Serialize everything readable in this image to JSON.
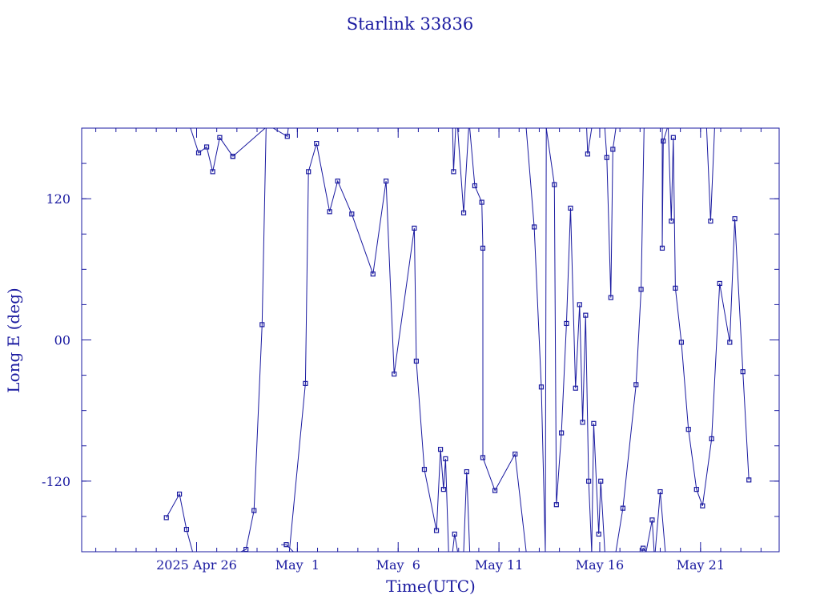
{
  "colors": {
    "ink": "#1a1aa0",
    "background": "#ffffff"
  },
  "chart_data": {
    "type": "line",
    "title": "Starlink 33836",
    "xlabel": "Time(UTC)",
    "ylabel": "Long E (deg)",
    "x_unit": "days",
    "xlim": [
      -3.2,
      31.4
    ],
    "ylim": [
      -180,
      180
    ],
    "grid": false,
    "markers": "square",
    "x_ticks": [
      {
        "value": 2.5,
        "label": "2025 Apr 26"
      },
      {
        "value": 7.5,
        "label": "May  1"
      },
      {
        "value": 12.5,
        "label": "May  6"
      },
      {
        "value": 17.5,
        "label": "May 11"
      },
      {
        "value": 22.5,
        "label": "May 16"
      },
      {
        "value": 27.5,
        "label": "May 21"
      }
    ],
    "y_ticks": [
      {
        "value": 120,
        "label": "120"
      },
      {
        "value": 0,
        "label": "00"
      },
      {
        "value": -120,
        "label": "-120"
      }
    ],
    "series": [
      {
        "x": [
          1.0,
          1.65,
          2.0,
          2.3
        ],
        "y": [
          -151,
          -131,
          -161,
          -180
        ],
        "pts": [
          1,
          1,
          1,
          0
        ]
      },
      {
        "x": [
          2.2,
          2.6,
          3.0,
          3.3,
          3.65,
          4.3
        ],
        "y": [
          180,
          159,
          164,
          143,
          172,
          156
        ],
        "pts": [
          0,
          1,
          1,
          1,
          1,
          1
        ]
      },
      {
        "x": [
          4.3,
          5.9,
          6.3
        ],
        "y": [
          156,
          180,
          180
        ],
        "pts": [
          1,
          0,
          0
        ]
      },
      {
        "x": [
          6.3,
          7.0,
          7.05
        ],
        "y": [
          180,
          173,
          180
        ],
        "pts": [
          0,
          1,
          0
        ]
      },
      {
        "x": [
          4.7,
          4.95,
          5.35,
          5.75,
          5.95
        ],
        "y": [
          -180,
          -178,
          -145,
          13,
          180
        ],
        "pts": [
          0,
          1,
          1,
          1,
          0
        ]
      },
      {
        "x": [
          6.7,
          6.95,
          7.3
        ],
        "y": [
          -174,
          -174,
          -180
        ],
        "pts": [
          0,
          1,
          0
        ]
      },
      {
        "x": [
          7.1,
          7.9,
          8.05,
          8.45,
          9.1,
          9.5,
          10.2,
          11.25,
          11.9,
          12.3,
          13.3,
          13.4,
          13.8,
          14.4,
          14.6,
          14.75,
          14.85,
          15.0,
          15.15
        ],
        "y": [
          -180,
          -37,
          143,
          167,
          109,
          135,
          107,
          56,
          135,
          -29,
          95,
          -18,
          -110,
          -162,
          -93,
          -127,
          -101,
          -180,
          -180
        ],
        "pts": [
          0,
          1,
          1,
          1,
          1,
          1,
          1,
          1,
          1,
          1,
          1,
          1,
          1,
          1,
          1,
          1,
          1,
          0,
          0
        ]
      },
      {
        "x": [
          15.2,
          15.3,
          15.45
        ],
        "y": [
          -180,
          -165,
          -180
        ],
        "pts": [
          0,
          1,
          0
        ]
      },
      {
        "x": [
          15.2,
          15.25,
          15.35
        ],
        "y": [
          180,
          143,
          180
        ],
        "pts": [
          0,
          1,
          0
        ]
      },
      {
        "x": [
          15.45,
          15.75,
          16.0
        ],
        "y": [
          180,
          108,
          180
        ],
        "pts": [
          0,
          1,
          0
        ]
      },
      {
        "x": [
          15.75,
          15.9,
          16.05
        ],
        "y": [
          -180,
          -112,
          -180
        ],
        "pts": [
          0,
          1,
          0
        ]
      },
      {
        "x": [
          16.05,
          16.3,
          16.65,
          16.7,
          16.7,
          17.3,
          18.3,
          18.85
        ],
        "y": [
          180,
          131,
          117,
          78,
          -100,
          -128,
          -97,
          -180
        ],
        "pts": [
          0,
          1,
          1,
          1,
          1,
          1,
          1,
          0
        ]
      },
      {
        "x": [
          18.85,
          19.25,
          19.6,
          19.8,
          19.85
        ],
        "y": [
          180,
          96,
          -40,
          -180,
          180
        ],
        "pts": [
          0,
          1,
          1,
          0,
          0
        ]
      },
      {
        "x": [
          19.85,
          20.25,
          20.35,
          20.6,
          20.85,
          21.05,
          21.3,
          21.5,
          21.65,
          21.8,
          21.95,
          22.1
        ],
        "y": [
          180,
          132,
          -140,
          -79,
          14,
          112,
          -41,
          30,
          -70,
          21,
          -120,
          -180
        ],
        "pts": [
          0,
          1,
          1,
          1,
          1,
          1,
          1,
          1,
          1,
          1,
          1,
          0
        ]
      },
      {
        "x": [
          21.85,
          21.9,
          22.1
        ],
        "y": [
          180,
          158,
          180
        ],
        "pts": [
          0,
          1,
          0
        ]
      },
      {
        "x": [
          22.1,
          22.2,
          22.45,
          22.55,
          22.75
        ],
        "y": [
          -180,
          -71,
          -165,
          -120,
          -180
        ],
        "pts": [
          0,
          1,
          1,
          1,
          0
        ]
      },
      {
        "x": [
          22.75,
          22.85,
          23.05,
          23.15,
          23.3,
          23.35
        ],
        "y": [
          180,
          155,
          36,
          162,
          180,
          180
        ],
        "pts": [
          0,
          1,
          1,
          1,
          0,
          0
        ]
      },
      {
        "x": [
          23.3,
          23.65,
          24.3,
          24.55,
          24.7
        ],
        "y": [
          -180,
          -143,
          -38,
          43,
          180
        ],
        "pts": [
          0,
          1,
          1,
          1,
          0
        ]
      },
      {
        "x": [
          24.6,
          24.65,
          24.8
        ],
        "y": [
          -180,
          -177,
          -180
        ],
        "pts": [
          0,
          1,
          0
        ]
      },
      {
        "x": [
          24.8,
          25.1,
          25.2
        ],
        "y": [
          -180,
          -153,
          -180
        ],
        "pts": [
          0,
          1,
          0
        ]
      },
      {
        "x": [
          25.25,
          25.5,
          25.75
        ],
        "y": [
          -180,
          -129,
          -180
        ],
        "pts": [
          0,
          1,
          0
        ]
      },
      {
        "x": [
          25.6,
          25.6,
          25.65,
          25.85,
          25.9
        ],
        "y": [
          180,
          78,
          169,
          180,
          180
        ],
        "pts": [
          0,
          1,
          1,
          0,
          0
        ]
      },
      {
        "x": [
          25.9,
          26.05,
          26.15,
          26.25,
          26.55,
          26.9,
          27.3,
          27.6,
          28.05,
          28.45,
          28.95,
          29.2,
          29.6,
          29.9
        ],
        "y": [
          180,
          101,
          172,
          44,
          -2,
          -76,
          -127,
          -141,
          -84,
          48,
          -2,
          103,
          -27,
          -119
        ],
        "pts": [
          0,
          1,
          1,
          1,
          1,
          1,
          1,
          1,
          1,
          1,
          1,
          1,
          1,
          1
        ]
      },
      {
        "x": [
          27.8,
          28.0,
          28.2
        ],
        "y": [
          180,
          101,
          180
        ],
        "pts": [
          0,
          1,
          0
        ]
      }
    ]
  }
}
